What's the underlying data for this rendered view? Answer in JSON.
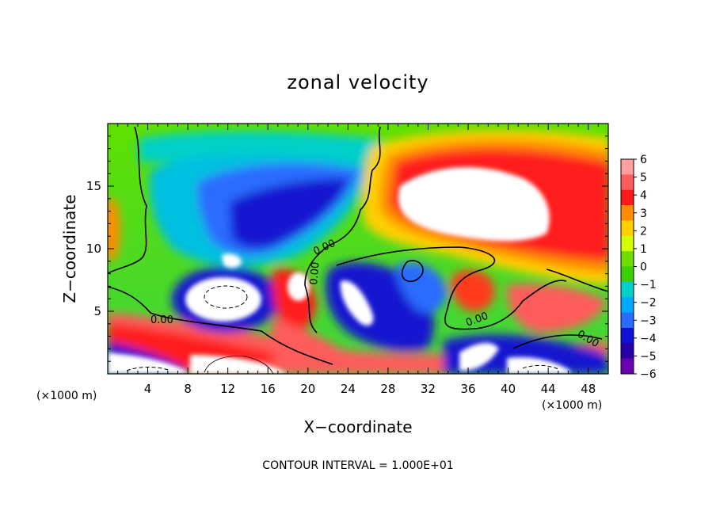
{
  "chart_data": {
    "type": "heatmap",
    "title": "zonal velocity",
    "xlabel": "X−coordinate",
    "ylabel": "Z−coordinate",
    "x_unit_label": "(×1000 m)",
    "y_unit_label": "(×1000 m)",
    "footer": "CONTOUR INTERVAL = 1.000E+01",
    "xlim": [
      0,
      50
    ],
    "ylim": [
      0,
      20
    ],
    "x_ticks": [
      4,
      8,
      12,
      16,
      20,
      24,
      28,
      32,
      36,
      40,
      44,
      48
    ],
    "y_ticks": [
      5,
      10,
      15
    ],
    "colorbar": {
      "ticks": [
        "6",
        "5",
        "4",
        "3",
        "2",
        "1",
        "0",
        "−1",
        "−2",
        "−3",
        "−4",
        "−5",
        "−6"
      ],
      "colors": [
        "#ff9f9f",
        "#ff5c5c",
        "#ff1a1a",
        "#ff8c00",
        "#ffd000",
        "#d4ff00",
        "#6edd00",
        "#3cd000",
        "#00d0c8",
        "#00a8ff",
        "#2a6cff",
        "#1010d8",
        "#2800a8",
        "#6a00b0"
      ]
    },
    "contour_labels": [
      "0.00",
      "0.00",
      "0.00",
      "0.00",
      "0.00"
    ],
    "regions": {
      "background": "#3ed53e",
      "strong_positive": "#ffffff",
      "strong_negative": "#ffffff"
    }
  }
}
